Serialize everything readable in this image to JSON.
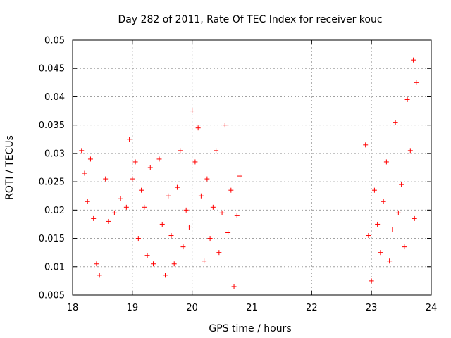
{
  "chart_data": {
    "type": "scatter",
    "title": "Day 282 of 2011, Rate Of TEC Index for receiver kouc",
    "xlabel": "GPS time / hours",
    "ylabel": "ROTI / TECUs",
    "xlim": [
      18,
      24
    ],
    "ylim": [
      0.005,
      0.05
    ],
    "x_ticks": [
      18,
      19,
      20,
      21,
      22,
      23,
      24
    ],
    "x_tick_labels": [
      "18",
      "19",
      "20",
      "21",
      "22",
      "23",
      "24"
    ],
    "y_ticks": [
      0.005,
      0.01,
      0.015,
      0.02,
      0.025,
      0.03,
      0.035,
      0.04,
      0.045,
      0.05
    ],
    "y_tick_labels": [
      "0.005",
      "0.01",
      "0.015",
      "0.02",
      "0.025",
      "0.03",
      "0.035",
      "0.04",
      "0.045",
      "0.05"
    ],
    "grid": true,
    "marker": "+",
    "color": "#ff0000",
    "series": [
      {
        "name": "ROTI",
        "points": [
          [
            18.15,
            0.0305
          ],
          [
            18.2,
            0.0265
          ],
          [
            18.25,
            0.0215
          ],
          [
            18.3,
            0.029
          ],
          [
            18.35,
            0.0185
          ],
          [
            18.4,
            0.0105
          ],
          [
            18.45,
            0.0085
          ],
          [
            18.55,
            0.0255
          ],
          [
            18.6,
            0.018
          ],
          [
            18.7,
            0.0195
          ],
          [
            18.8,
            0.022
          ],
          [
            18.9,
            0.0205
          ],
          [
            18.95,
            0.0325
          ],
          [
            19.0,
            0.0255
          ],
          [
            19.05,
            0.0285
          ],
          [
            19.1,
            0.015
          ],
          [
            19.15,
            0.0235
          ],
          [
            19.2,
            0.0205
          ],
          [
            19.25,
            0.012
          ],
          [
            19.3,
            0.0275
          ],
          [
            19.35,
            0.0105
          ],
          [
            19.45,
            0.029
          ],
          [
            19.5,
            0.0175
          ],
          [
            19.55,
            0.0085
          ],
          [
            19.6,
            0.0225
          ],
          [
            19.65,
            0.0155
          ],
          [
            19.7,
            0.0105
          ],
          [
            19.75,
            0.024
          ],
          [
            19.8,
            0.0305
          ],
          [
            19.85,
            0.0135
          ],
          [
            19.9,
            0.02
          ],
          [
            19.95,
            0.017
          ],
          [
            20.0,
            0.0375
          ],
          [
            20.05,
            0.0285
          ],
          [
            20.1,
            0.0345
          ],
          [
            20.15,
            0.0225
          ],
          [
            20.2,
            0.011
          ],
          [
            20.25,
            0.0255
          ],
          [
            20.3,
            0.015
          ],
          [
            20.35,
            0.0205
          ],
          [
            20.4,
            0.0305
          ],
          [
            20.45,
            0.0125
          ],
          [
            20.5,
            0.0195
          ],
          [
            20.55,
            0.035
          ],
          [
            20.6,
            0.016
          ],
          [
            20.65,
            0.0235
          ],
          [
            20.7,
            0.0065
          ],
          [
            20.75,
            0.019
          ],
          [
            20.8,
            0.026
          ],
          [
            22.9,
            0.0315
          ],
          [
            22.95,
            0.0155
          ],
          [
            23.0,
            0.0075
          ],
          [
            23.05,
            0.0235
          ],
          [
            23.1,
            0.0175
          ],
          [
            23.15,
            0.0125
          ],
          [
            23.2,
            0.0215
          ],
          [
            23.25,
            0.0285
          ],
          [
            23.3,
            0.011
          ],
          [
            23.35,
            0.0165
          ],
          [
            23.4,
            0.0355
          ],
          [
            23.45,
            0.0195
          ],
          [
            23.5,
            0.0245
          ],
          [
            23.55,
            0.0135
          ],
          [
            23.6,
            0.0395
          ],
          [
            23.65,
            0.0305
          ],
          [
            23.7,
            0.0465
          ],
          [
            23.72,
            0.0185
          ],
          [
            23.75,
            0.0425
          ]
        ]
      }
    ]
  }
}
